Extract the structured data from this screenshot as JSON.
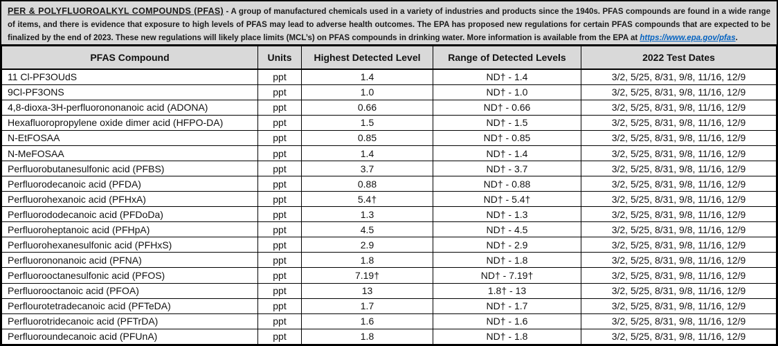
{
  "intro": {
    "title": "PER & POLYFLUOROALKYL COMPOUNDS (PFAS)",
    "separator": " - ",
    "body": "A group of manufactured chemicals used in a variety of industries and products since the 1940s. PFAS compounds are found in a wide range of items, and there is evidence that exposure to high levels of PFAS may lead to adverse health outcomes.  The EPA has proposed new regulations for certain PFAS compounds that are expected to be finalized by the end of 2023. These new regulations will likely place limits (MCL’s) on PFAS compounds in drinking water. More information is available from the EPA at ",
    "link": "https://www.epa.gov/pfas",
    "link_suffix": "."
  },
  "table": {
    "columns": [
      "PFAS Compound",
      "Units",
      "Highest Detected Level",
      "Range of Detected Levels",
      "2022 Test Dates"
    ],
    "rows": [
      {
        "compound": "11 Cl-PF3OUdS",
        "units": "ppt",
        "highest": "1.4",
        "range": "ND† - 1.4",
        "dates": "3/2, 5/25, 8/31, 9/8, 11/16, 12/9"
      },
      {
        "compound": "9Cl-PF3ONS",
        "units": "ppt",
        "highest": "1.0",
        "range": "ND† - 1.0",
        "dates": "3/2, 5/25, 8/31, 9/8, 11/16, 12/9"
      },
      {
        "compound": "4,8-dioxa-3H-perfluorononanoic acid (ADONA)",
        "units": "ppt",
        "highest": "0.66",
        "range": "ND† - 0.66",
        "dates": "3/2, 5/25, 8/31, 9/8, 11/16, 12/9"
      },
      {
        "compound": "Hexafluoropropylene oxide dimer acid (HFPO-DA)",
        "units": "ppt",
        "highest": "1.5",
        "range": "ND† - 1.5",
        "dates": "3/2, 5/25, 8/31, 9/8, 11/16, 12/9"
      },
      {
        "compound": "N-EtFOSAA",
        "units": "ppt",
        "highest": "0.85",
        "range": "ND† - 0.85",
        "dates": "3/2, 5/25, 8/31, 9/8, 11/16, 12/9"
      },
      {
        "compound": "N-MeFOSAA",
        "units": "ppt",
        "highest": "1.4",
        "range": "ND† - 1.4",
        "dates": "3/2, 5/25, 8/31, 9/8, 11/16, 12/9"
      },
      {
        "compound": "Perfluorobutanesulfonic acid (PFBS)",
        "units": "ppt",
        "highest": "3.7",
        "range": "ND† - 3.7",
        "dates": "3/2, 5/25, 8/31, 9/8, 11/16, 12/9"
      },
      {
        "compound": "Perfluorodecanoic acid (PFDA)",
        "units": "ppt",
        "highest": "0.88",
        "range": "ND† - 0.88",
        "dates": "3/2, 5/25, 8/31, 9/8, 11/16, 12/9"
      },
      {
        "compound": "Perfluorohexanoic acid (PFHxA)",
        "units": "ppt",
        "highest": "5.4†",
        "range": "ND† - 5.4†",
        "dates": "3/2, 5/25, 8/31, 9/8, 11/16, 12/9"
      },
      {
        "compound": "Perfluorododecanoic acid (PFDoDa)",
        "units": "ppt",
        "highest": "1.3",
        "range": "ND† - 1.3",
        "dates": "3/2, 5/25, 8/31, 9/8, 11/16, 12/9"
      },
      {
        "compound": "Perfluoroheptanoic acid (PFHpA)",
        "units": "ppt",
        "highest": "4.5",
        "range": "ND† - 4.5",
        "dates": "3/2, 5/25, 8/31, 9/8, 11/16, 12/9"
      },
      {
        "compound": "Perfluorohexanesulfonic acid (PFHxS)",
        "units": "ppt",
        "highest": "2.9",
        "range": "ND† - 2.9",
        "dates": "3/2, 5/25, 8/31, 9/8, 11/16, 12/9"
      },
      {
        "compound": "Perfluorononanoic acid (PFNA)",
        "units": "ppt",
        "highest": "1.8",
        "range": "ND† - 1.8",
        "dates": "3/2, 5/25, 8/31, 9/8, 11/16, 12/9"
      },
      {
        "compound": "Perfluorooctanesulfonic acid (PFOS)",
        "units": "ppt",
        "highest": "7.19†",
        "range": "ND† - 7.19†",
        "dates": "3/2, 5/25, 8/31, 9/8, 11/16, 12/9"
      },
      {
        "compound": "Perfluorooctanoic acid (PFOA)",
        "units": "ppt",
        "highest": "13",
        "range": "1.8† - 13",
        "dates": "3/2, 5/25, 8/31, 9/8, 11/16, 12/9"
      },
      {
        "compound": "Perflourotetradecanoic acid (PFTeDA)",
        "units": "ppt",
        "highest": "1.7",
        "range": "ND† - 1.7",
        "dates": "3/2, 5/25, 8/31, 9/8, 11/16, 12/9"
      },
      {
        "compound": "Perfluorotridecanoic acid (PFTrDA)",
        "units": "ppt",
        "highest": "1.6",
        "range": "ND† - 1.6",
        "dates": "3/2, 5/25, 8/31, 9/8, 11/16, 12/9"
      },
      {
        "compound": "Perfluoroundecanoic acid (PFUnA)",
        "units": "ppt",
        "highest": "1.8",
        "range": "ND† - 1.8",
        "dates": "3/2, 5/25, 8/31, 9/8, 11/16, 12/9"
      }
    ]
  },
  "colors": {
    "header_bg": "#d9d9d9",
    "link_blue": "#0563c1",
    "border_color": "#000000"
  }
}
